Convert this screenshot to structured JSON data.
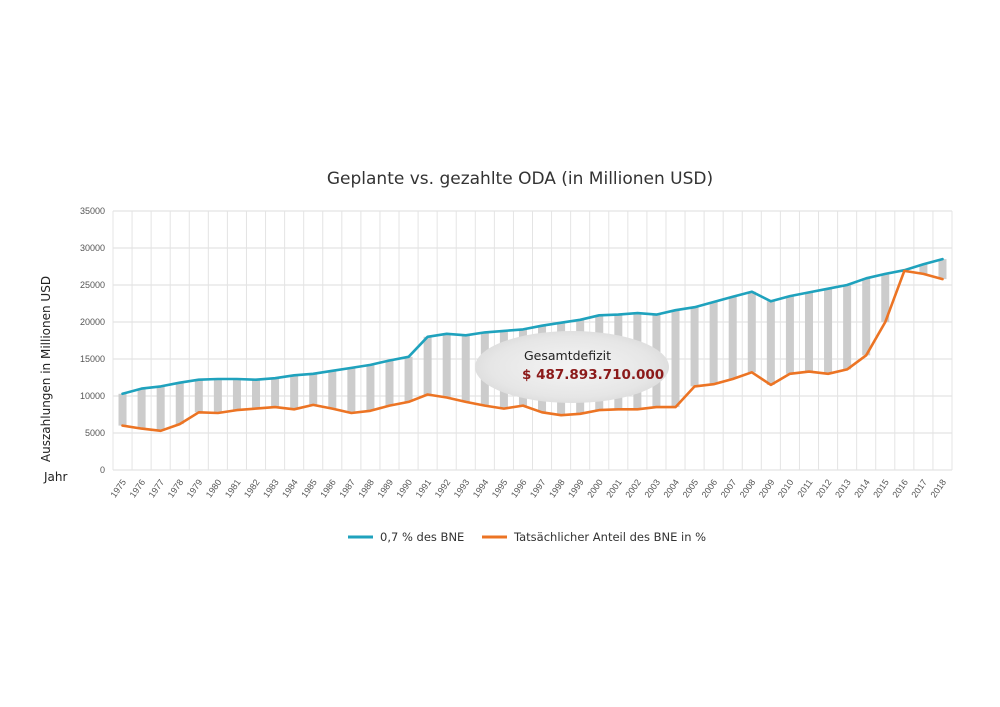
{
  "chart_data": {
    "type": "line",
    "title": "Geplante vs. gezahlte ODA (in Millionen USD)",
    "ylabel": "Auszahlungen in Millionen USD",
    "xlabel": "Jahr",
    "ylim": [
      0,
      35000
    ],
    "yticks": [
      0,
      5000,
      10000,
      15000,
      20000,
      25000,
      30000,
      35000
    ],
    "grid": true,
    "legend_position": "bottom",
    "categories": [
      "1975",
      "1976",
      "1977",
      "1978",
      "1979",
      "1980",
      "1981",
      "1982",
      "1983",
      "1984",
      "1985",
      "1986",
      "1987",
      "1988",
      "1989",
      "1990",
      "1991",
      "1992",
      "1993",
      "1994",
      "1995",
      "1996",
      "1997",
      "1998",
      "1999",
      "2000",
      "2001",
      "2002",
      "2003",
      "2004",
      "2005",
      "2006",
      "2007",
      "2008",
      "2009",
      "2010",
      "2011",
      "2012",
      "2013",
      "2014",
      "2015",
      "2016",
      "2017",
      "2018"
    ],
    "series": [
      {
        "name": "0,7 % des BNE",
        "color": "#1fa2bd",
        "values": [
          10300,
          11000,
          11300,
          11800,
          12200,
          12300,
          12300,
          12200,
          12400,
          12800,
          13000,
          13400,
          13800,
          14200,
          14800,
          15300,
          18000,
          18400,
          18200,
          18600,
          18800,
          19000,
          19500,
          19900,
          20300,
          20900,
          21000,
          21200,
          21000,
          21600,
          22000,
          22700,
          23400,
          24100,
          22800,
          23500,
          24000,
          24500,
          25000,
          25900,
          26500,
          27000,
          27800,
          28500
        ]
      },
      {
        "name": "Tatsächlicher Anteil des BNE in %",
        "color": "#ec7424",
        "values": [
          6000,
          5600,
          5300,
          6200,
          7800,
          7700,
          8100,
          8300,
          8500,
          8200,
          8800,
          8300,
          7700,
          8000,
          8700,
          9200,
          10200,
          9800,
          9200,
          8700,
          8300,
          8700,
          7800,
          7400,
          7600,
          8100,
          8200,
          8200,
          8500,
          8500,
          11300,
          11600,
          12300,
          13200,
          11500,
          13000,
          13300,
          13000,
          13600,
          15500,
          20000,
          26900,
          26500,
          25800
        ]
      }
    ],
    "gap_bar_color": "#cccccc",
    "annotation": {
      "label": "Gesamtdefizit",
      "value": "$ 487.893.710.000"
    }
  }
}
